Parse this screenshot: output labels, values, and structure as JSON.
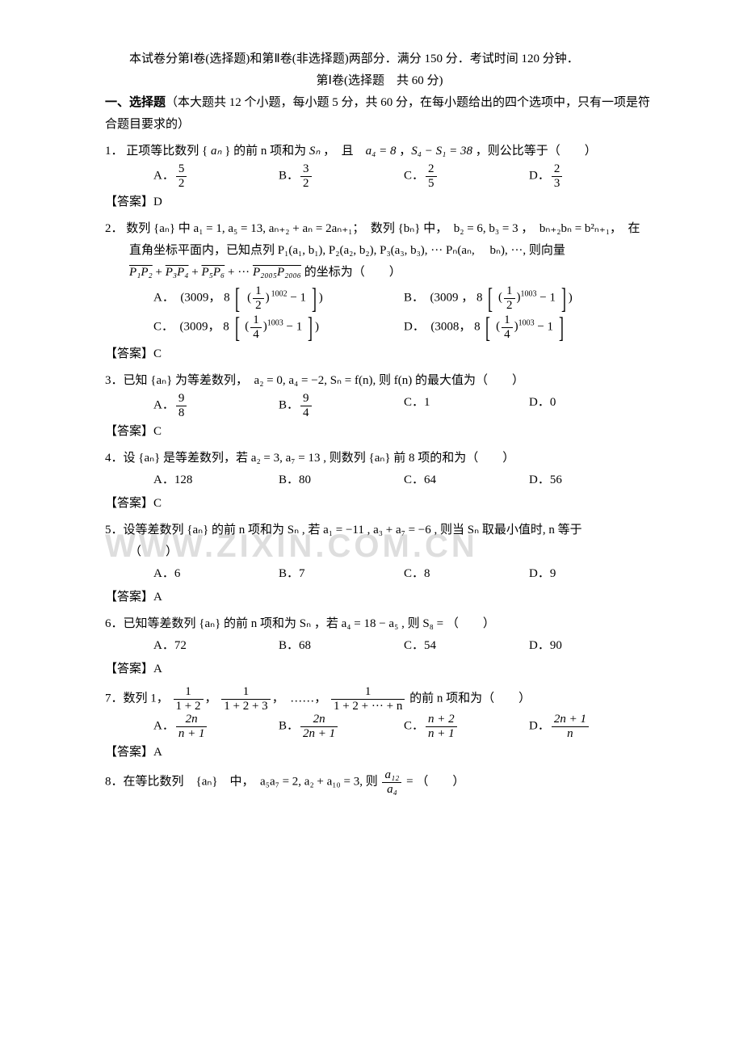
{
  "watermark": "WWW.ZIXIN.COM.CN",
  "intro_line1": "本试卷分第Ⅰ卷(选择题)和第Ⅱ卷(非选择题)两部分．满分 150 分．考试时间 120 分钟．",
  "intro_line2": "第Ⅰ卷(选择题　共 60 分)",
  "section1_title": "一、选择题",
  "section1_desc": "（本大题共 12 个小题，每小题 5 分，共 60 分，在每小题给出的四个选项中，只有一项是符合题目要求的）",
  "q1": {
    "label": "1．",
    "text_p1": "正项等比数列 { ",
    "text_p2": " } 的前 n 项和为 ",
    "text_p3": " ，　且　",
    "text_p4": " ，",
    "text_p5": " ，则公比等于（　　）",
    "an": "aₙ",
    "sn": "Sₙ",
    "eq1": "a₄ = 8",
    "eq2": "S₄ − S₁ = 38",
    "A": "A．",
    "Anum": "5",
    "Aden": "2",
    "B": "B．",
    "Bnum": "3",
    "Bden": "2",
    "C": "C．",
    "Cnum": "2",
    "Cden": "5",
    "D": "D．",
    "Dnum": "2",
    "Dden": "3",
    "ans": "【答案】D"
  },
  "q2": {
    "label": "2．",
    "t1": "数列 {aₙ} 中 a₁ = 1, a₅ = 13, aₙ₊₂ + aₙ = 2aₙ₊₁；　数列 {bₙ} 中，　b₂ = 6, b₃ = 3 ，　bₙ₊₂bₙ = b²ₙ₊₁，　在",
    "t2": "直角坐标平面内，已知点列 P₁(a₁, b₁), P₂(a₂, b₂), P₃(a₃, b₃), ··· Pₙ(aₙ, 　bₙ), ···, 则向量",
    "t3_1": "P₁P₂",
    "t3_plus1": " + ",
    "t3_2": "P₃P₄",
    "t3_plus2": " + ",
    "t3_3": "P₅P₆",
    "t3_plus3": " + ··· ",
    "t3_4": "P₂₀₀₅P₂₀₀₆",
    "t3_tail": " 的坐标为（　　）",
    "A": "A．　(3009，",
    "A_base": "1",
    "A_baseD": "2",
    "A_exp": "1002",
    "A_tail": " − 1",
    "A_close": ")",
    "B": "B．　(3009 ，",
    "B_base": "1",
    "B_baseD": "2",
    "B_exp": "1003",
    "B_tail": " − 1",
    "B_close": ")",
    "C": "C．　(3009，",
    "C_base": "1",
    "C_baseD": "4",
    "C_exp": "1003",
    "C_tail": " − 1",
    "C_close": ")",
    "D": "D．　(3008，",
    "D_base": "1",
    "D_baseD": "4",
    "D_exp": "1003",
    "D_tail": " − 1",
    "eight": "8",
    "ans": "【答案】C"
  },
  "q3": {
    "label": "3．",
    "t1": "已知 {aₙ} 为等差数列，　a₂ = 0, a₄ = −2, Sₙ = f(n), 则 f(n) 的最大值为（　　）",
    "A": "A．",
    "Anum": "9",
    "Aden": "8",
    "B": "B．",
    "Bnum": "9",
    "Bden": "4",
    "C": "C．1",
    "D": "D．0",
    "ans": "【答案】C"
  },
  "q4": {
    "label": "4．",
    "t1": "设 {aₙ} 是等差数列，若 a₂ = 3, a₇ = 13 , 则数列 {aₙ} 前 8 项的和为（　　）",
    "A": "A．128",
    "B": "B．80",
    "C": "C．64",
    "D": "D．56",
    "ans": "【答案】C"
  },
  "q5": {
    "label": "5．",
    "t1": "设等差数列 {aₙ} 的前 n 项和为 Sₙ , 若 a₁ = −11 , a₃ + a₇ = −6 , 则当 Sₙ 取最小值时, n 等于",
    "t2": "（　　）",
    "A": "A．6",
    "B": "B．7",
    "C": "C．8",
    "D": "D．9",
    "ans": "【答案】A"
  },
  "q6": {
    "label": "6．",
    "t1": "已知等差数列 {aₙ} 的前 n 项和为 Sₙ ，若 a₄ = 18 − a₅ , 则 S₈ = （　　）",
    "A": "A．72",
    "B": "B．68",
    "C": "C．54",
    "D": "D．90",
    "ans": "【答案】A"
  },
  "q7": {
    "label": "7．",
    "t1_a": "数列 1，",
    "f1n": "1",
    "f1d": "1 + 2",
    "sep1": "，",
    "f2n": "1",
    "f2d": "1 + 2 + 3",
    "sep2": "，　……，",
    "f3n": "1",
    "f3d": "1 + 2 + ··· + n",
    "t1_b": " 的前 n 项和为（　　）",
    "A": "A．",
    "Anum": "2n",
    "Aden": "n + 1",
    "B": "B．",
    "Bnum": "2n",
    "Bden": "2n + 1",
    "C": "C．",
    "Cnum": "n + 2",
    "Cden": "n + 1",
    "D": "D．",
    "Dnum": "2n + 1",
    "Dden": "n",
    "ans": "【答案】A"
  },
  "q8": {
    "label": "8．",
    "t1_a": "在等比数列　{aₙ}　中，　a₅a₇ = 2, a₂ + a₁₀ = 3, 则 ",
    "fnum": "a₁₂",
    "fden": "a₄",
    "t1_b": " = （　　）"
  }
}
